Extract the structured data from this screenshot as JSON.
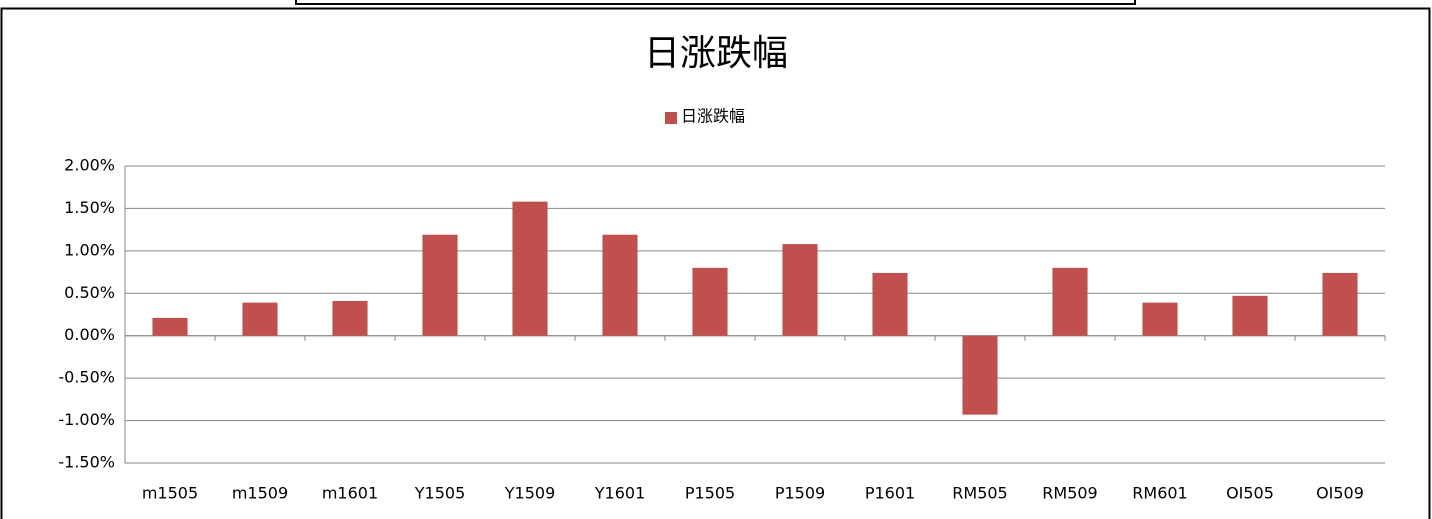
{
  "chart_data": {
    "type": "bar",
    "title": "日涨跌幅",
    "categories": [
      "m1505",
      "m1509",
      "m1601",
      "Y1505",
      "Y1509",
      "Y1601",
      "P1505",
      "P1509",
      "P1601",
      "RM505",
      "RM509",
      "RM601",
      "OI505",
      "OI509"
    ],
    "series": [
      {
        "name": "日涨跌幅",
        "color": "#c0504d",
        "values": [
          0.21,
          0.39,
          0.41,
          1.19,
          1.58,
          1.19,
          0.8,
          1.08,
          0.74,
          -0.93,
          0.8,
          0.39,
          0.47,
          0.74
        ]
      }
    ],
    "ylim": [
      -1.5,
      2
    ],
    "yticks": [
      {
        "value": -1.5,
        "label": "-1.50%"
      },
      {
        "value": -1,
        "label": "-1.00%"
      },
      {
        "value": -0.5,
        "label": "-0.50%"
      },
      {
        "value": 0,
        "label": "0.00%"
      },
      {
        "value": 0.5,
        "label": "0.50%"
      },
      {
        "value": 1,
        "label": "1.00%"
      },
      {
        "value": 1.5,
        "label": "1.50%"
      },
      {
        "value": 2,
        "label": "2.00%"
      }
    ],
    "grid": true,
    "legend": "top"
  }
}
